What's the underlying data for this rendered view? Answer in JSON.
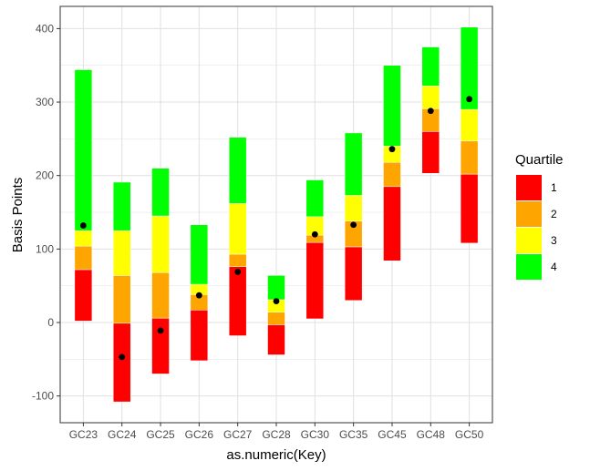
{
  "chart_data": {
    "type": "bar",
    "subtype": "floating-stacked-bar-with-points",
    "xlabel": "as.numeric(Key)",
    "ylabel": "Basis Points",
    "ylim": [
      -135,
      415
    ],
    "yticks": [
      -100,
      0,
      100,
      200,
      300,
      400
    ],
    "categories": [
      "GC23",
      "GC24",
      "GC25",
      "GC26",
      "GC27",
      "GC28",
      "GC30",
      "GC35",
      "GC45",
      "GC48",
      "GC50"
    ],
    "grid": true,
    "legend": {
      "title": "Quartile",
      "position": "right",
      "entries": [
        {
          "label": "1",
          "color": "#FF0000"
        },
        {
          "label": "2",
          "color": "#FFA500"
        },
        {
          "label": "3",
          "color": "#FFFF00"
        },
        {
          "label": "4",
          "color": "#00FF00"
        }
      ]
    },
    "quartile_boundaries": [
      [
        2,
        72,
        104,
        125,
        344
      ],
      [
        -108,
        -1,
        64,
        125,
        191
      ],
      [
        -70,
        6,
        68,
        145,
        210
      ],
      [
        -52,
        17,
        38,
        52,
        133
      ],
      [
        -18,
        76,
        93,
        162,
        252
      ],
      [
        -44,
        -3,
        14,
        31,
        64
      ],
      [
        5,
        109,
        119,
        144,
        194
      ],
      [
        30,
        103,
        138,
        173,
        258
      ],
      [
        84,
        185,
        218,
        240,
        350
      ],
      [
        203,
        260,
        291,
        322,
        375
      ],
      [
        108,
        202,
        247,
        290,
        402
      ]
    ],
    "points": [
      132,
      -47,
      -11,
      37,
      69,
      29,
      120,
      133,
      236,
      288,
      304
    ],
    "point_color": "#000000"
  }
}
